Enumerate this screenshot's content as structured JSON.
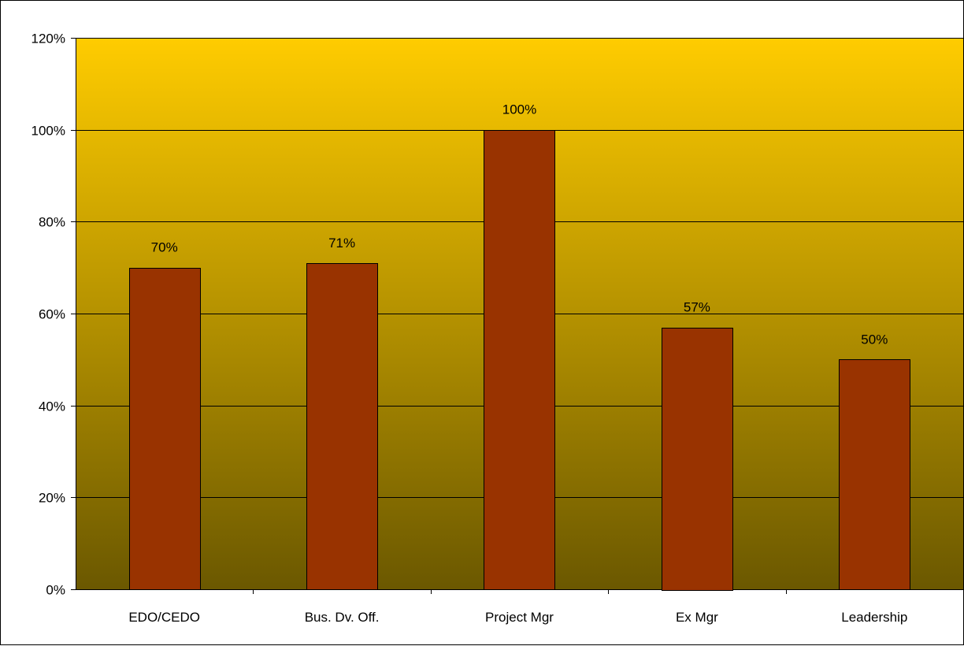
{
  "chart_data": {
    "type": "bar",
    "title": "",
    "xlabel": "",
    "ylabel": "",
    "categories": [
      "EDO/CEDO",
      "Bus. Dv. Off.",
      "Project Mgr",
      "Ex Mgr",
      "Leadership"
    ],
    "values": [
      70,
      71,
      100,
      57,
      50
    ],
    "value_labels": [
      "70%",
      "71%",
      "100%",
      "57%",
      "50%"
    ],
    "ylim": [
      0,
      120
    ],
    "y_ticks": [
      0,
      20,
      40,
      60,
      80,
      100,
      120
    ],
    "y_tick_labels": [
      "0%",
      "20%",
      "40%",
      "60%",
      "80%",
      "100%",
      "120%"
    ],
    "grid": true,
    "legend": "none",
    "colors": {
      "bar_fill": "#993300",
      "bar_stroke": "#000000",
      "plot_background_top": "#ffcc00",
      "plot_background_bottom": "#6b5800",
      "gridline": "#000000",
      "axis": "#000000"
    }
  }
}
